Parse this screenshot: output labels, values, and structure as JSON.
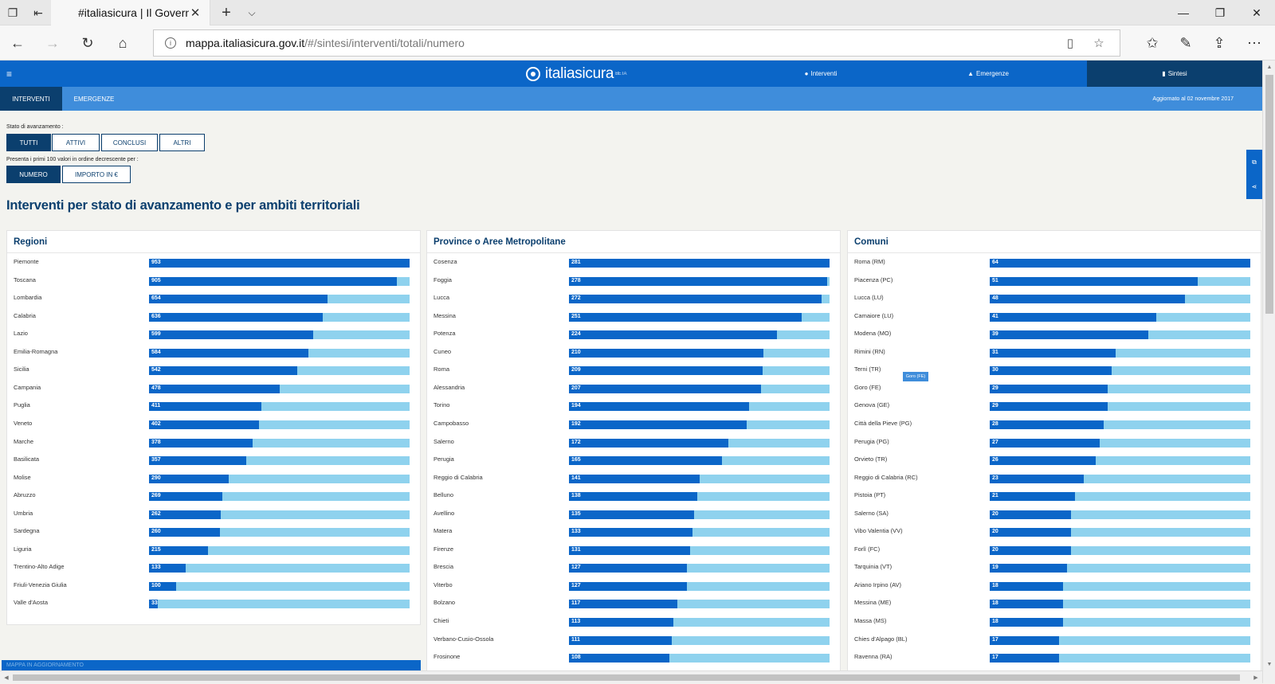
{
  "browser": {
    "tab_title": "#italiasicura | Il Governo",
    "url_host": "mappa.italiasicura.gov.it",
    "url_path": "/#/sintesi/interventi/totali/numero"
  },
  "site": {
    "logo": "italiasicura",
    "logo_sup": "BETA",
    "nav": [
      {
        "label": "Interventi",
        "icon": "●"
      },
      {
        "label": "Emergenze",
        "icon": "▲"
      },
      {
        "label": "Sintesi",
        "icon": "▮"
      }
    ],
    "subtabs": [
      "INTERVENTI",
      "EMERGENZE"
    ],
    "updated": "Aggiornato al 02 novembre 2017"
  },
  "filters": {
    "stato_label": "Stato di avanzamento :",
    "stato_buttons": [
      "TUTTI",
      "ATTIVI",
      "CONCLUSI",
      "ALTRI"
    ],
    "order_label": "Presenta i primi 100 valori in ordine decrescente per :",
    "order_buttons": [
      "NUMERO",
      "IMPORTO IN €"
    ]
  },
  "heading": "Interventi per stato di avanzamento e per ambiti territoriali",
  "tooltip": "Goro (FE)",
  "status_bar": "MAPPA IN AGGIORNAMENTO",
  "accent_color": "#0b66c8",
  "dark_color": "#0b3f6e",
  "track_color": "#8fd2ee",
  "panels": [
    {
      "title": "Regioni",
      "max": 953,
      "rows": [
        {
          "name": "Piemonte",
          "value": 953
        },
        {
          "name": "Toscana",
          "value": 905
        },
        {
          "name": "Lombardia",
          "value": 654
        },
        {
          "name": "Calabria",
          "value": 636
        },
        {
          "name": "Lazio",
          "value": 599
        },
        {
          "name": "Emilia-Romagna",
          "value": 584
        },
        {
          "name": "Sicilia",
          "value": 542
        },
        {
          "name": "Campania",
          "value": 478
        },
        {
          "name": "Puglia",
          "value": 411
        },
        {
          "name": "Veneto",
          "value": 402
        },
        {
          "name": "Marche",
          "value": 378
        },
        {
          "name": "Basilicata",
          "value": 357
        },
        {
          "name": "Molise",
          "value": 290
        },
        {
          "name": "Abruzzo",
          "value": 269
        },
        {
          "name": "Umbria",
          "value": 262
        },
        {
          "name": "Sardegna",
          "value": 260
        },
        {
          "name": "Liguria",
          "value": 215
        },
        {
          "name": "Trentino-Alto Adige",
          "value": 133
        },
        {
          "name": "Friuli-Venezia Giulia",
          "value": 100
        },
        {
          "name": "Valle d'Aosta",
          "value": 33
        }
      ]
    },
    {
      "title": "Province o Aree Metropolitane",
      "max": 281,
      "rows": [
        {
          "name": "Cosenza",
          "value": 281
        },
        {
          "name": "Foggia",
          "value": 278
        },
        {
          "name": "Lucca",
          "value": 272
        },
        {
          "name": "Messina",
          "value": 251
        },
        {
          "name": "Potenza",
          "value": 224
        },
        {
          "name": "Cuneo",
          "value": 210
        },
        {
          "name": "Roma",
          "value": 209
        },
        {
          "name": "Alessandria",
          "value": 207
        },
        {
          "name": "Torino",
          "value": 194
        },
        {
          "name": "Campobasso",
          "value": 192
        },
        {
          "name": "Salerno",
          "value": 172
        },
        {
          "name": "Perugia",
          "value": 165
        },
        {
          "name": "Reggio di Calabria",
          "value": 141
        },
        {
          "name": "Belluno",
          "value": 138
        },
        {
          "name": "Avellino",
          "value": 135
        },
        {
          "name": "Matera",
          "value": 133
        },
        {
          "name": "Firenze",
          "value": 131
        },
        {
          "name": "Brescia",
          "value": 127
        },
        {
          "name": "Viterbo",
          "value": 127
        },
        {
          "name": "Bolzano",
          "value": 117
        },
        {
          "name": "Chieti",
          "value": 113
        },
        {
          "name": "Verbano-Cusio-Ossola",
          "value": 111
        },
        {
          "name": "Frosinone",
          "value": 108
        }
      ]
    },
    {
      "title": "Comuni",
      "max": 64,
      "rows": [
        {
          "name": "Roma (RM)",
          "value": 64
        },
        {
          "name": "Piacenza (PC)",
          "value": 51
        },
        {
          "name": "Lucca (LU)",
          "value": 48
        },
        {
          "name": "Camaiore (LU)",
          "value": 41
        },
        {
          "name": "Modena (MO)",
          "value": 39
        },
        {
          "name": "Rimini (RN)",
          "value": 31
        },
        {
          "name": "Terni (TR)",
          "value": 30
        },
        {
          "name": "Goro (FE)",
          "value": 29
        },
        {
          "name": "Genova (GE)",
          "value": 29
        },
        {
          "name": "Città della Pieve (PG)",
          "value": 28
        },
        {
          "name": "Perugia (PG)",
          "value": 27
        },
        {
          "name": "Orvieto (TR)",
          "value": 26
        },
        {
          "name": "Reggio di Calabria (RC)",
          "value": 23
        },
        {
          "name": "Pistoia (PT)",
          "value": 21
        },
        {
          "name": "Salerno (SA)",
          "value": 20
        },
        {
          "name": "Vibo Valentia (VV)",
          "value": 20
        },
        {
          "name": "Forlì (FC)",
          "value": 20
        },
        {
          "name": "Tarquinia (VT)",
          "value": 19
        },
        {
          "name": "Ariano Irpino (AV)",
          "value": 18
        },
        {
          "name": "Messina (ME)",
          "value": 18
        },
        {
          "name": "Massa (MS)",
          "value": 18
        },
        {
          "name": "Chies d'Alpago (BL)",
          "value": 17
        },
        {
          "name": "Ravenna (RA)",
          "value": 17
        }
      ]
    }
  ]
}
